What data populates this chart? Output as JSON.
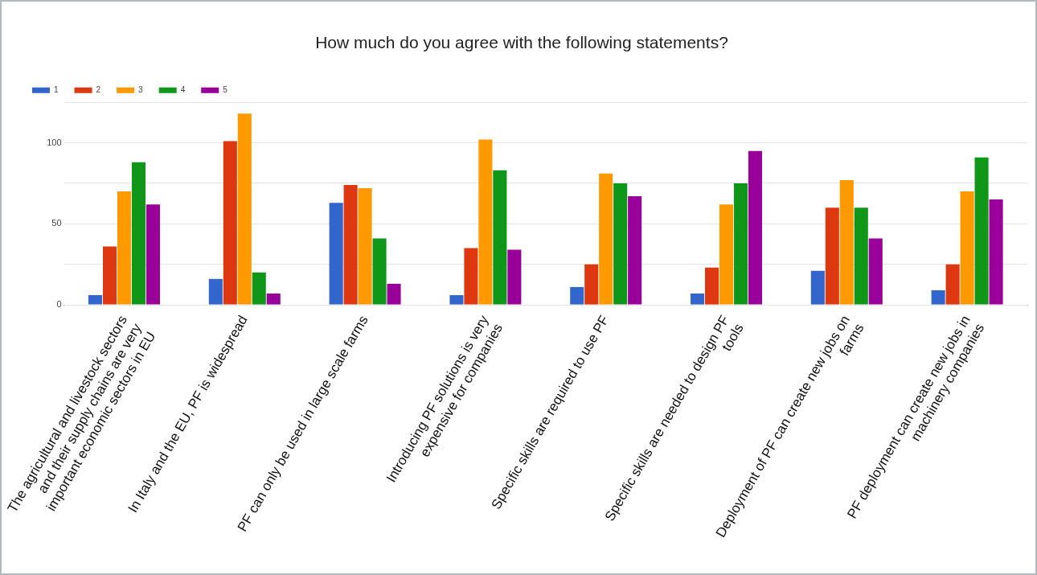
{
  "chart_data": {
    "type": "bar",
    "title": "How much do you agree with the following statements?",
    "categories": [
      "The agricultural and livestock sectors and their supply chains are very important economic sectors in EU",
      "In Italy and the EU, PF is widespread",
      "PF can only be used in large scale farms",
      "Introducing PF solutions is very expensive for companies",
      "Specific skills are required to use PF",
      "Specific skills are needed to design PF tools",
      "Deployment of PF can create new jobs on farms",
      "PF deployment can create new jobs in machinery companies"
    ],
    "series": [
      {
        "name": "1",
        "color": "#3366cc",
        "values": [
          6,
          16,
          63,
          6,
          11,
          7,
          21,
          9
        ]
      },
      {
        "name": "2",
        "color": "#dc3912",
        "values": [
          36,
          101,
          74,
          35,
          25,
          23,
          60,
          25
        ]
      },
      {
        "name": "3",
        "color": "#ff9900",
        "values": [
          70,
          118,
          72,
          102,
          81,
          62,
          77,
          70
        ]
      },
      {
        "name": "4",
        "color": "#109618",
        "values": [
          88,
          20,
          41,
          83,
          75,
          75,
          60,
          91
        ]
      },
      {
        "name": "5",
        "color": "#990099",
        "values": [
          62,
          7,
          13,
          34,
          67,
          95,
          41,
          65
        ]
      }
    ],
    "ylim": [
      0,
      125
    ],
    "yticks": [
      0,
      {
        "value": 25,
        "label": null
      },
      50,
      {
        "value": 75,
        "label": null
      },
      100,
      {
        "value": 125,
        "label": null
      }
    ],
    "grid": "y",
    "legend": "top left"
  }
}
